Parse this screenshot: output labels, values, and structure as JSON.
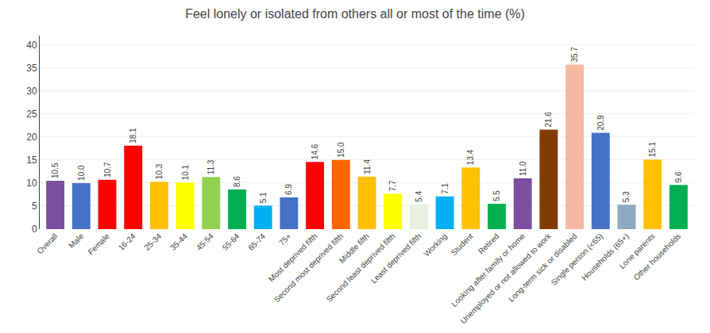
{
  "chart_data": {
    "type": "bar",
    "title": "Feel lonely or isolated from others all or most of the time (%)",
    "categories": [
      "Overall",
      "Male",
      "Female",
      "16-24",
      "25-34",
      "35-44",
      "45-54",
      "55-64",
      "65-74",
      "75+",
      "Most deprived fifth",
      "Second most deprived fifth",
      "Middle fifth",
      "Second least deprived fifth",
      "Least deprived fifth",
      "Working",
      "Student",
      "Retired",
      "Looking after family or home",
      "Unemployed or not allowed to work",
      "Long-term sick or disabled",
      "Single person (<65)",
      "Households (65+)",
      "Lone parents",
      "Other households"
    ],
    "values": [
      10.5,
      10.0,
      10.7,
      18.1,
      10.3,
      10.1,
      11.3,
      8.6,
      5.1,
      6.9,
      14.6,
      15.0,
      11.4,
      7.7,
      5.4,
      7.1,
      13.4,
      5.5,
      11.0,
      21.6,
      35.7,
      20.9,
      5.3,
      15.1,
      9.6
    ],
    "value_labels": [
      "10.5",
      "10.0",
      "10.7",
      "18.1",
      "10.3",
      "10.1",
      "11.3",
      "8.6",
      "5.1",
      "6.9",
      "14.6",
      "15.0",
      "11.4",
      "7.7",
      "5.4",
      "7.1",
      "13.4",
      "5.5",
      "11.0",
      "21.6",
      "35.7",
      "20.9",
      "5.3",
      "15.1",
      "9.6"
    ],
    "colors": [
      "#7b4f9e",
      "#4472c4",
      "#ff0000",
      "#ff0000",
      "#ffc000",
      "#ffff00",
      "#92d050",
      "#00b050",
      "#00b0f0",
      "#4472c4",
      "#ff0000",
      "#ff6600",
      "#ffc000",
      "#ffff00",
      "#e8f0de",
      "#00b0f0",
      "#ffc000",
      "#00b050",
      "#7b4f9e",
      "#833c00",
      "#f4b8a0",
      "#4472c4",
      "#8ea9c1",
      "#ffc000",
      "#00b050"
    ],
    "ylim": [
      0,
      42
    ],
    "yticks": [
      0,
      5,
      10,
      15,
      20,
      25,
      30,
      35,
      40
    ],
    "grid": true,
    "data_labels": true
  }
}
